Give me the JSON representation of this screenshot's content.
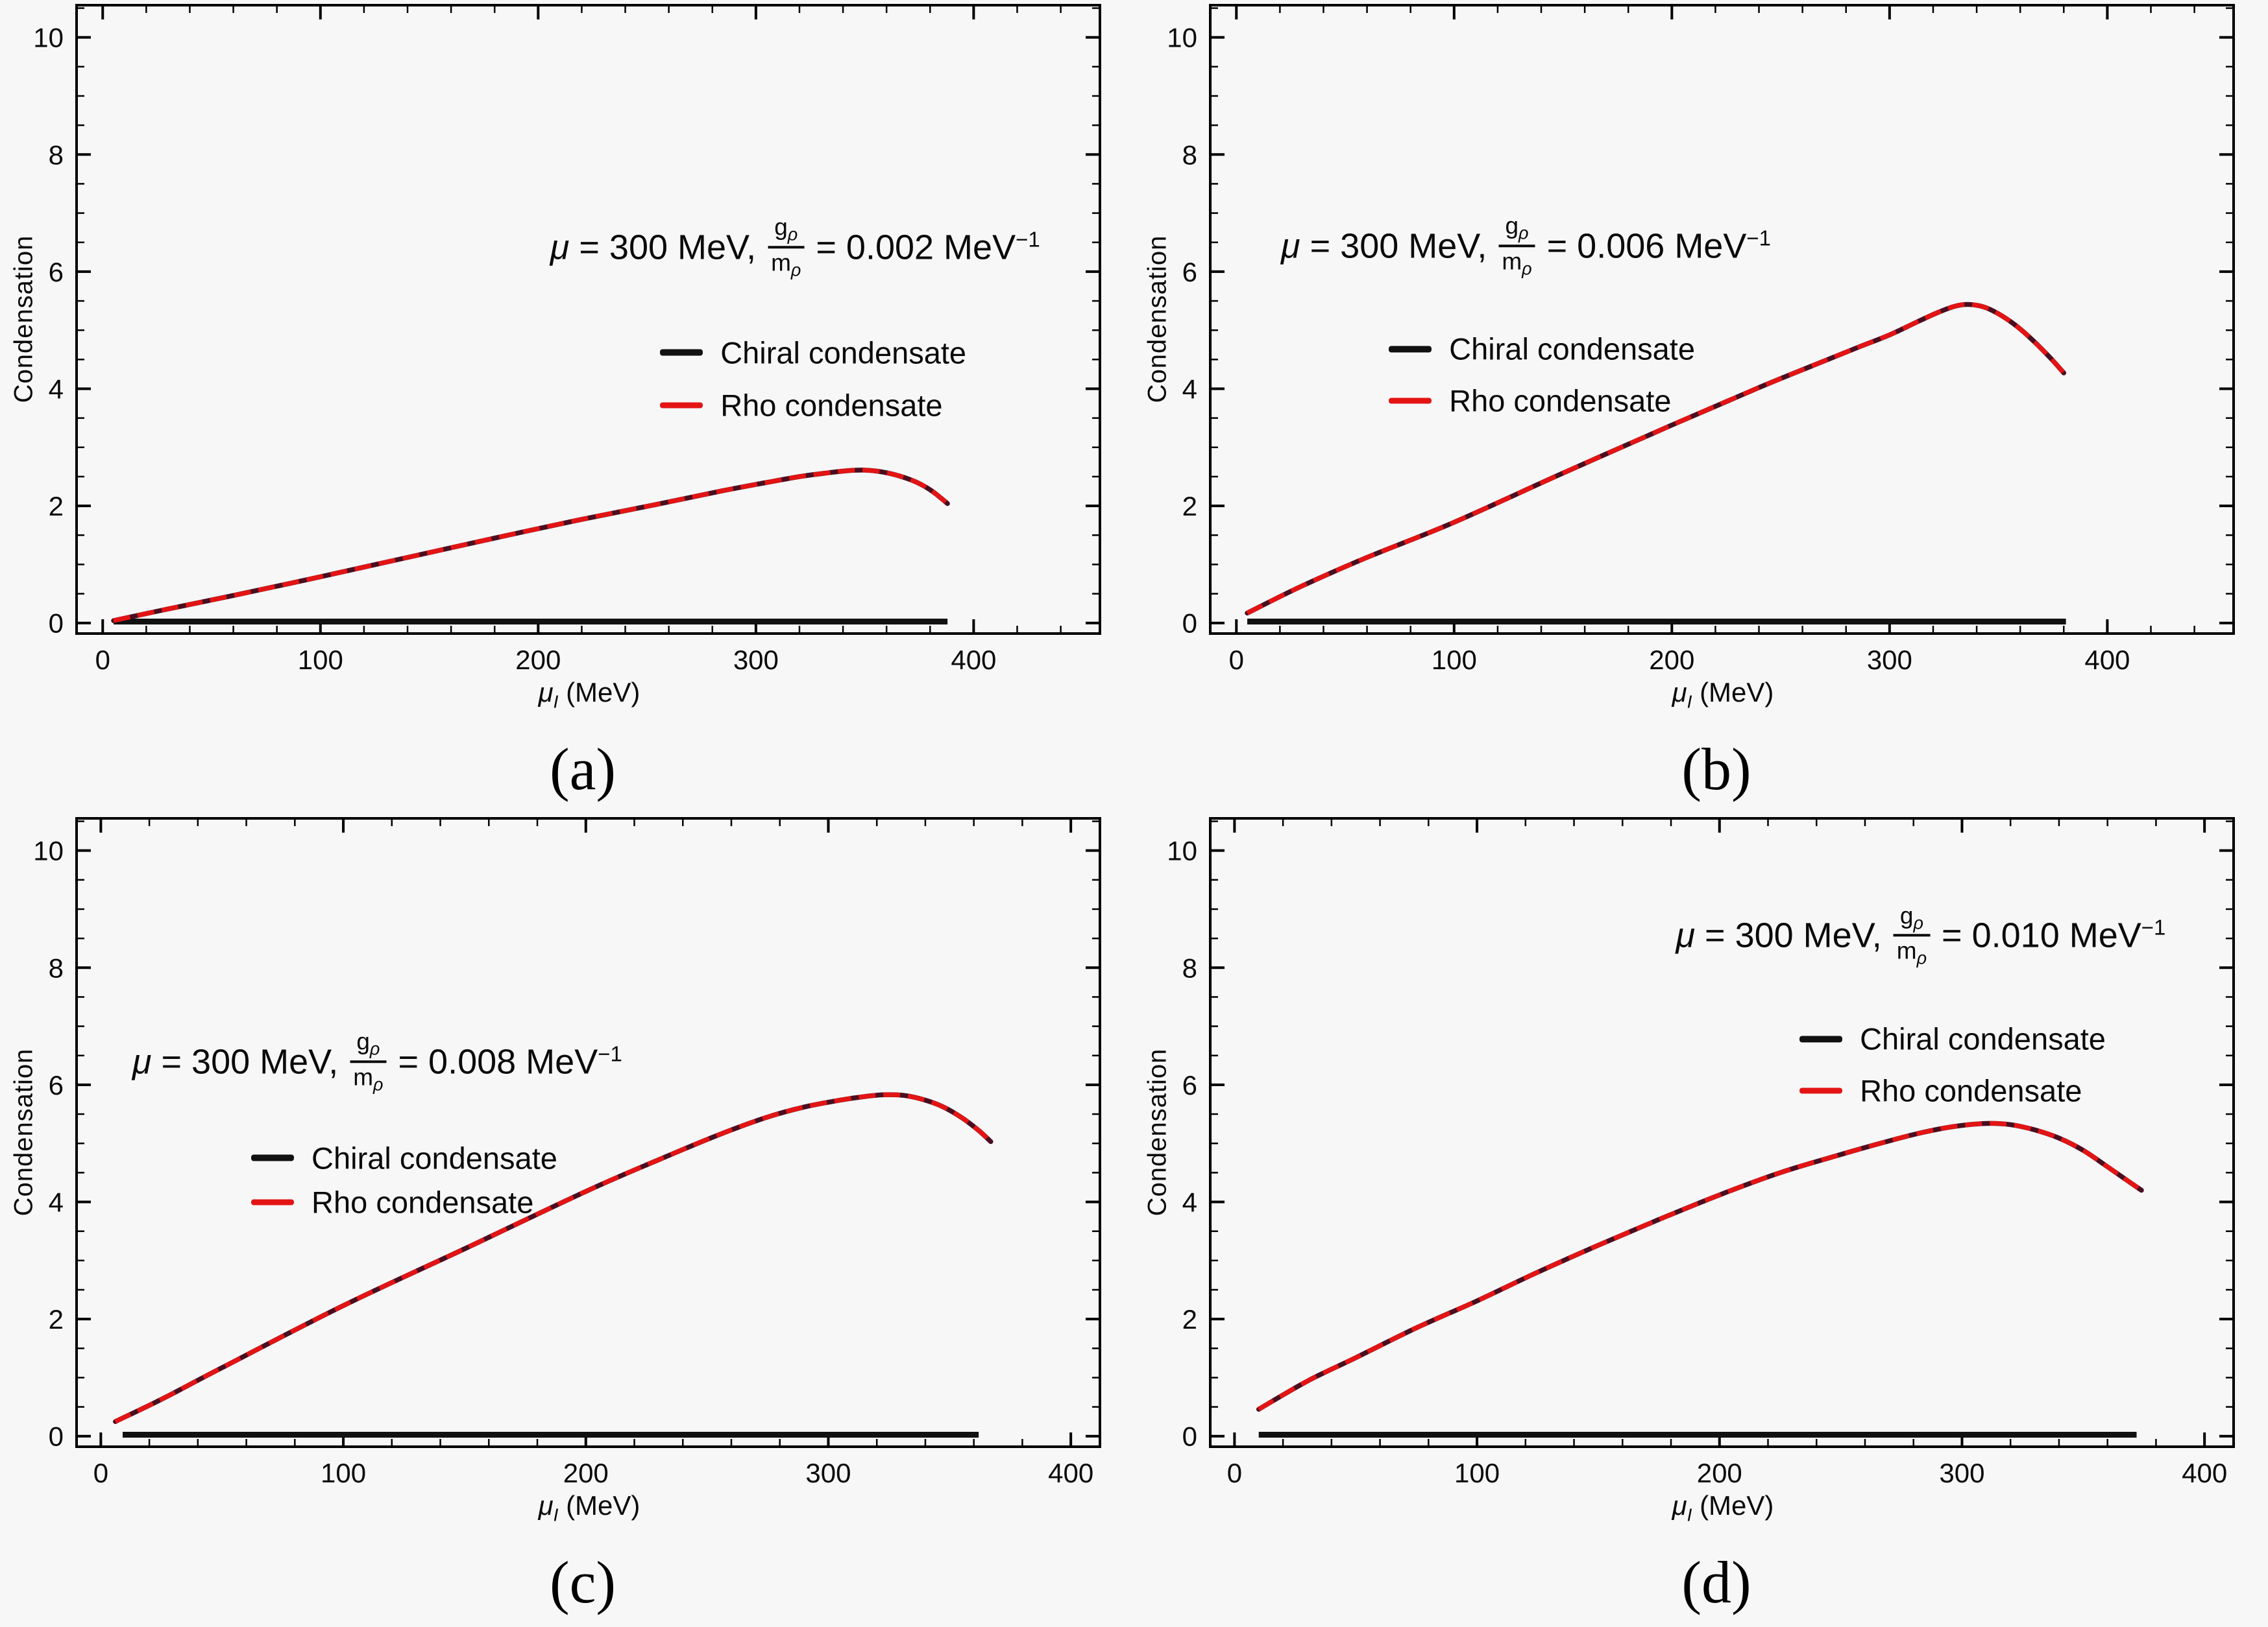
{
  "figure": {
    "background": "#f7f7f7",
    "frame_color": "#000000",
    "text_color": "#0a0a0a",
    "axes_shared": {
      "xlabel_mu": "μ",
      "xlabel_sub": "I",
      "xlabel_unit": " (MeV)",
      "ylabel": "Condensation"
    },
    "series_colors": {
      "chiral": "#111111",
      "rho": "#e41414",
      "rho_under": "#4a0e20"
    }
  },
  "chart_data": [
    {
      "id": "a",
      "type": "line",
      "panel_label": "(a)",
      "title": "μ = 300 MeV, g_ρ/m_ρ = 0.002 MeV⁻¹",
      "xlabel": "μ_I (MeV)",
      "ylabel": "Condensation",
      "xlim": [
        -12,
        458
      ],
      "ylim": [
        -0.18,
        10.55
      ],
      "xticks": [
        0,
        100,
        200,
        300,
        400
      ],
      "yticks": [
        0,
        2,
        4,
        6,
        8,
        10
      ],
      "x_minor_step": 20,
      "y_minor_step": 0.5,
      "annotation": {
        "mu": "μ",
        "prefix_rest": " = 300 MeV,",
        "frac_num_base": "g",
        "frac_num_sub": "ρ",
        "frac_den_base": "m",
        "frac_den_sub": "ρ",
        "equals_value": "= 0.002 MeV",
        "exponent": "−1",
        "x": 318,
        "y": 6.42
      },
      "legend": {
        "x": 256,
        "rows_y": [
          4.62,
          3.72
        ],
        "entries": [
          {
            "name": "Chiral condensate",
            "color": "#111111"
          },
          {
            "name": "Rho condensate",
            "color": "#e41414"
          }
        ]
      },
      "series": [
        {
          "name": "Chiral condensate",
          "color": "#111111",
          "width": 9,
          "points": [
            [
              5,
              0.025
            ],
            [
              388,
              0.025
            ]
          ]
        },
        {
          "name": "Rho condensate",
          "color": "#e41414",
          "under_color": "#4a0e20",
          "width": 7,
          "points": [
            [
              5,
              0.04
            ],
            [
              30,
              0.24
            ],
            [
              60,
              0.47
            ],
            [
              100,
              0.79
            ],
            [
              140,
              1.12
            ],
            [
              180,
              1.45
            ],
            [
              220,
              1.77
            ],
            [
              255,
              2.03
            ],
            [
              285,
              2.26
            ],
            [
              305,
              2.4
            ],
            [
              320,
              2.5
            ],
            [
              332,
              2.56
            ],
            [
              342,
              2.6
            ],
            [
              350,
              2.61
            ],
            [
              358,
              2.58
            ],
            [
              366,
              2.51
            ],
            [
              374,
              2.4
            ],
            [
              381,
              2.25
            ],
            [
              388,
              2.04
            ]
          ]
        }
      ]
    },
    {
      "id": "b",
      "type": "line",
      "panel_label": "(b)",
      "title": "μ = 300 MeV, g_ρ/m_ρ = 0.006 MeV⁻¹",
      "xlabel": "μ_I (MeV)",
      "ylabel": "Condensation",
      "xlim": [
        -12,
        458
      ],
      "ylim": [
        -0.18,
        10.55
      ],
      "xticks": [
        0,
        100,
        200,
        300,
        400
      ],
      "yticks": [
        0,
        2,
        4,
        6,
        8,
        10
      ],
      "x_minor_step": 20,
      "y_minor_step": 0.5,
      "annotation": {
        "mu": "μ",
        "prefix_rest": " = 300 MeV,",
        "frac_num_base": "g",
        "frac_num_sub": "ρ",
        "frac_den_base": "m",
        "frac_den_sub": "ρ",
        "equals_value": "= 0.006 MeV",
        "exponent": "−1",
        "x": 133,
        "y": 6.44
      },
      "legend": {
        "x": 70,
        "rows_y": [
          4.68,
          3.8
        ],
        "entries": [
          {
            "name": "Chiral condensate",
            "color": "#111111"
          },
          {
            "name": "Rho condensate",
            "color": "#e41414"
          }
        ]
      },
      "series": [
        {
          "name": "Chiral condensate",
          "color": "#111111",
          "width": 9,
          "points": [
            [
              5,
              0.025
            ],
            [
              381,
              0.025
            ]
          ]
        },
        {
          "name": "Rho condensate",
          "color": "#e41414",
          "under_color": "#4a0e20",
          "width": 7,
          "points": [
            [
              5,
              0.17
            ],
            [
              30,
              0.63
            ],
            [
              60,
              1.12
            ],
            [
              100,
              1.72
            ],
            [
              150,
              2.56
            ],
            [
              200,
              3.38
            ],
            [
              240,
              4.02
            ],
            [
              265,
              4.4
            ],
            [
              285,
              4.7
            ],
            [
              300,
              4.92
            ],
            [
              312,
              5.13
            ],
            [
              322,
              5.3
            ],
            [
              330,
              5.41
            ],
            [
              336,
              5.44
            ],
            [
              343,
              5.4
            ],
            [
              350,
              5.28
            ],
            [
              358,
              5.08
            ],
            [
              366,
              4.82
            ],
            [
              374,
              4.52
            ],
            [
              380,
              4.27
            ]
          ]
        }
      ]
    },
    {
      "id": "c",
      "type": "line",
      "panel_label": "(c)",
      "title": "μ = 300 MeV, g_ρ/m_ρ = 0.008 MeV⁻¹",
      "xlabel": "μ_I (MeV)",
      "ylabel": "Condensation",
      "xlim": [
        -10,
        412
      ],
      "ylim": [
        -0.18,
        10.55
      ],
      "xticks": [
        0,
        100,
        200,
        300,
        400
      ],
      "yticks": [
        0,
        2,
        4,
        6,
        8,
        10
      ],
      "x_minor_step": 20,
      "y_minor_step": 0.5,
      "annotation": {
        "mu": "μ",
        "prefix_rest": " = 300 MeV,",
        "frac_num_base": "g",
        "frac_num_sub": "ρ",
        "frac_den_base": "m",
        "frac_den_sub": "ρ",
        "equals_value": "= 0.008 MeV",
        "exponent": "−1",
        "x": 114,
        "y": 6.4
      },
      "legend": {
        "x": 62,
        "rows_y": [
          4.75,
          4.0
        ],
        "entries": [
          {
            "name": "Chiral condensate",
            "color": "#111111"
          },
          {
            "name": "Rho condensate",
            "color": "#e41414"
          }
        ]
      },
      "series": [
        {
          "name": "Chiral condensate",
          "color": "#111111",
          "width": 9,
          "points": [
            [
              9,
              0.025
            ],
            [
              362,
              0.025
            ]
          ]
        },
        {
          "name": "Rho condensate",
          "color": "#e41414",
          "under_color": "#4a0e20",
          "width": 7,
          "points": [
            [
              6,
              0.25
            ],
            [
              25,
              0.63
            ],
            [
              50,
              1.17
            ],
            [
              100,
              2.23
            ],
            [
              150,
              3.2
            ],
            [
              200,
              4.18
            ],
            [
              230,
              4.72
            ],
            [
              255,
              5.15
            ],
            [
              275,
              5.45
            ],
            [
              290,
              5.62
            ],
            [
              305,
              5.74
            ],
            [
              315,
              5.8
            ],
            [
              323,
              5.83
            ],
            [
              331,
              5.82
            ],
            [
              339,
              5.75
            ],
            [
              347,
              5.63
            ],
            [
              355,
              5.44
            ],
            [
              362,
              5.22
            ],
            [
              367,
              5.03
            ]
          ]
        }
      ]
    },
    {
      "id": "d",
      "type": "line",
      "panel_label": "(d)",
      "title": "μ = 300 MeV, g_ρ/m_ρ = 0.010 MeV⁻¹",
      "xlabel": "μ_I (MeV)",
      "ylabel": "Condensation",
      "xlim": [
        -10,
        412
      ],
      "ylim": [
        -0.18,
        10.55
      ],
      "xticks": [
        0,
        100,
        200,
        300,
        400
      ],
      "yticks": [
        0,
        2,
        4,
        6,
        8,
        10
      ],
      "x_minor_step": 20,
      "y_minor_step": 0.5,
      "annotation": {
        "mu": "μ",
        "prefix_rest": " = 300 MeV,",
        "frac_num_base": "g",
        "frac_num_sub": "ρ",
        "frac_den_base": "m",
        "frac_den_sub": "ρ",
        "equals_value": "= 0.010 MeV",
        "exponent": "−1",
        "x": 283,
        "y": 8.55
      },
      "legend": {
        "x": 233,
        "rows_y": [
          6.78,
          5.9
        ],
        "entries": [
          {
            "name": "Chiral condensate",
            "color": "#111111"
          },
          {
            "name": "Rho condensate",
            "color": "#e41414"
          }
        ]
      },
      "series": [
        {
          "name": "Chiral condensate",
          "color": "#111111",
          "width": 9,
          "points": [
            [
              10,
              0.025
            ],
            [
              372,
              0.025
            ]
          ]
        },
        {
          "name": "Rho condensate",
          "color": "#e41414",
          "under_color": "#4a0e20",
          "width": 7,
          "points": [
            [
              10,
              0.46
            ],
            [
              30,
              0.94
            ],
            [
              50,
              1.34
            ],
            [
              75,
              1.85
            ],
            [
              100,
              2.31
            ],
            [
              125,
              2.8
            ],
            [
              150,
              3.26
            ],
            [
              175,
              3.7
            ],
            [
              200,
              4.12
            ],
            [
              225,
              4.5
            ],
            [
              250,
              4.81
            ],
            [
              268,
              5.02
            ],
            [
              283,
              5.18
            ],
            [
              297,
              5.29
            ],
            [
              310,
              5.34
            ],
            [
              320,
              5.32
            ],
            [
              330,
              5.23
            ],
            [
              340,
              5.09
            ],
            [
              350,
              4.88
            ],
            [
              360,
              4.6
            ],
            [
              368,
              4.37
            ],
            [
              374,
              4.2
            ]
          ]
        }
      ]
    }
  ]
}
